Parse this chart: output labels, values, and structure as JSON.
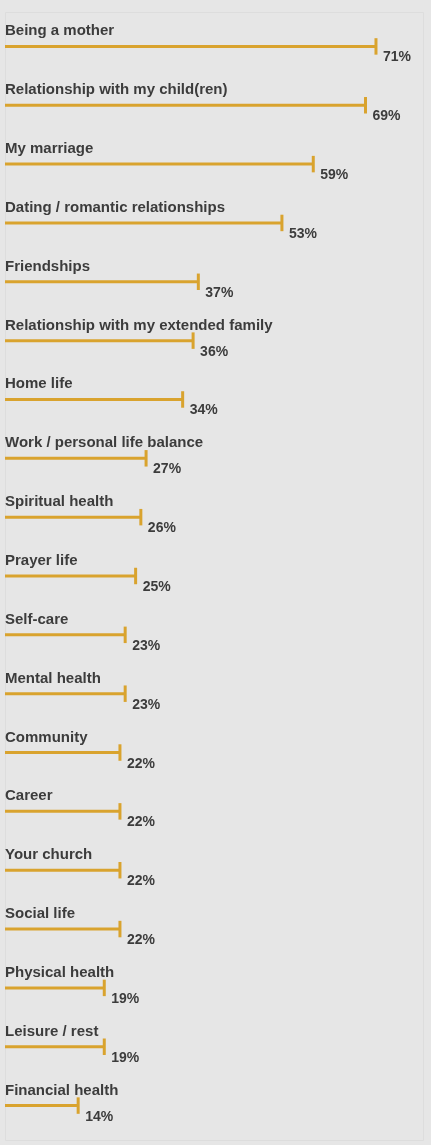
{
  "chart_data": {
    "type": "bar",
    "orientation": "horizontal",
    "categories": [
      "Being a mother",
      "Relationship with my child(ren)",
      "My marriage",
      "Dating / romantic relationships",
      "Friendships",
      "Relationship with my extended family",
      "Home life",
      "Work / personal life balance",
      "Spiritual health",
      "Prayer life",
      "Self-care",
      "Mental health",
      "Community",
      "Career",
      "Your church",
      "Social life",
      "Physical health",
      "Leisure / rest",
      "Financial health"
    ],
    "values": [
      71,
      69,
      59,
      53,
      37,
      36,
      34,
      27,
      26,
      25,
      23,
      23,
      22,
      22,
      22,
      22,
      19,
      19,
      14
    ],
    "value_labels": [
      "71%",
      "69%",
      "59%",
      "53%",
      "37%",
      "36%",
      "34%",
      "27%",
      "26%",
      "25%",
      "23%",
      "23%",
      "22%",
      "22%",
      "22%",
      "22%",
      "19%",
      "19%",
      "14%"
    ],
    "color": "#d9a32e"
  }
}
